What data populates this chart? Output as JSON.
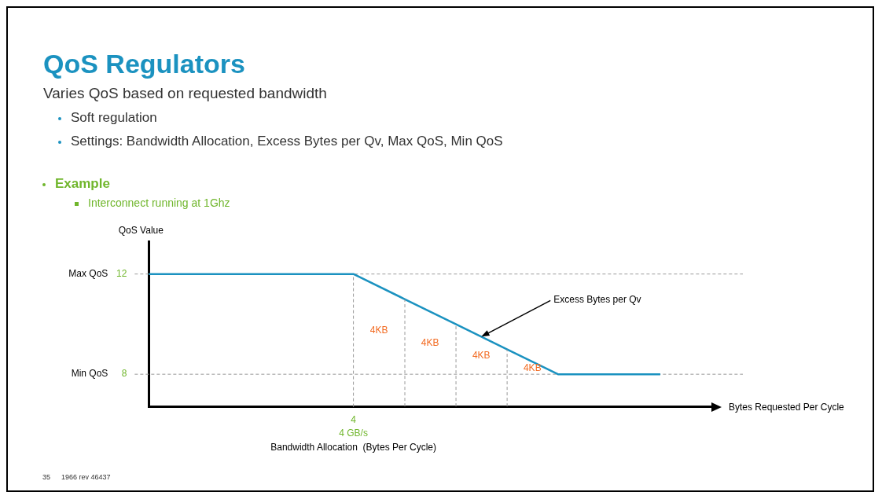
{
  "chart_data": {
    "type": "line",
    "title": "QoS Regulators",
    "subtitle": "Varies QoS based on requested bandwidth",
    "xlabel": "Bytes Requested Per Cycle",
    "ylabel": "QoS Value",
    "categories": [
      null,
      null,
      null,
      null,
      "4",
      null,
      null,
      null,
      null,
      null,
      null,
      null
    ],
    "series": [
      {
        "color": "#1b92c0",
        "values": [
          12,
          12,
          12,
          12,
          12,
          11,
          10,
          9,
          8,
          8,
          8,
          null
        ]
      }
    ],
    "ylim": [
      6.7,
      13.3
    ],
    "yticks": [
      12,
      8
    ],
    "grid": false,
    "legend": false,
    "marker": "none",
    "line_style": "solid",
    "ref_lines": [
      {
        "axis": "y",
        "value": 12,
        "label": "Max QoS",
        "color": "#999999",
        "line_style": "dashed"
      },
      {
        "axis": "y",
        "value": 8,
        "label": "Min QoS",
        "color": "#999999",
        "line_style": "dashed"
      },
      {
        "axis": "x",
        "value": "4",
        "color": "#999999",
        "line_style": "dashed"
      }
    ],
    "annotations": [
      "Soft regulation",
      "Settings: Bandwidth Allocation, Excess Bytes per Qv, Max QoS, Min QoS",
      "Example",
      "Interconnect running at 1Ghz",
      "35",
      "1966 rev 46437",
      "4KB",
      "4KB",
      "4KB",
      "4KB",
      "Excess Bytes per Qv",
      "4 GB/s",
      "Bandwidth Allocation  (Bytes Per Cycle)"
    ]
  }
}
